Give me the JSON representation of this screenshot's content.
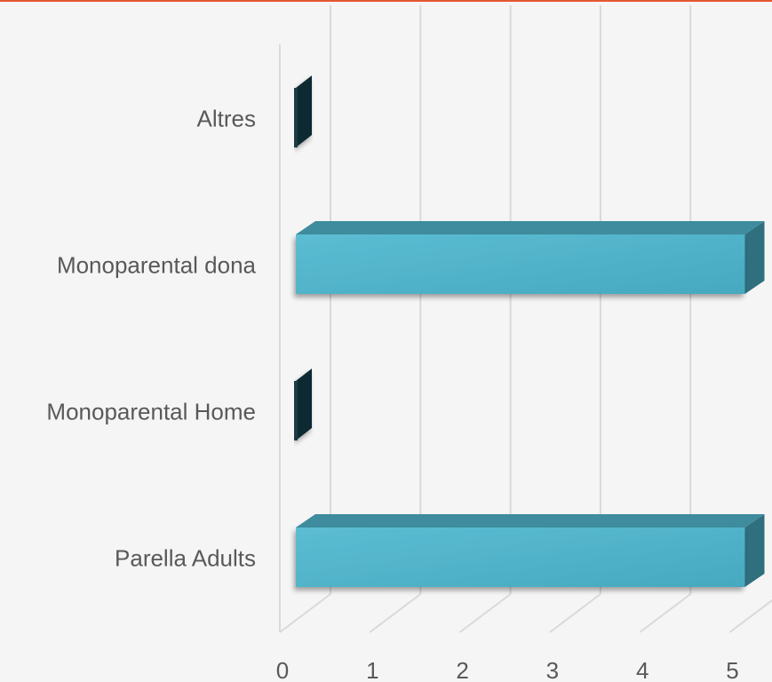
{
  "chart_data": {
    "type": "bar",
    "orientation": "horizontal",
    "three_d": true,
    "categories": [
      "Altres",
      "Monoparental dona",
      "Monoparental Home",
      "Parella Adults"
    ],
    "values": [
      0,
      5,
      0,
      5
    ],
    "xlim": [
      0,
      5
    ],
    "x_ticks": [
      "0",
      "1",
      "2",
      "3",
      "4",
      "5"
    ],
    "grid": true,
    "legend": "none",
    "title": "",
    "xlabel": "",
    "ylabel": "",
    "colors": {
      "bar_front": "#4fb3ca",
      "bar_top": "#3e8c9e",
      "bar_side": "#2f6f7e",
      "zero_bar": "#102a30",
      "grid": "#d9d9d9",
      "text": "#595959",
      "accent_rule": "#e4572e",
      "background": "#f5f5f5"
    }
  }
}
